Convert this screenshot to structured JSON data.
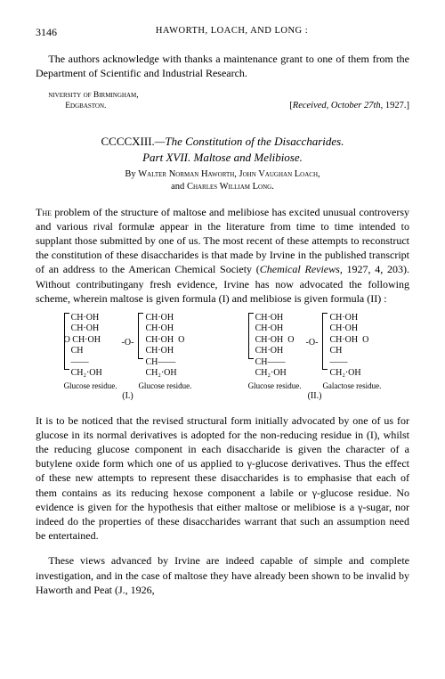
{
  "page_number": "3146",
  "running_head": "HAWORTH, LOACH, AND LONG :",
  "acknowledgement": "The authors acknowledge with thanks a maintenance grant to one of them from the Department of Scientific and Industrial Research.",
  "affiliation": {
    "line1": "niversity of Birmingham,",
    "line2": "Edgbaston.",
    "received": "[Received, October 27th, 1927.]"
  },
  "article": {
    "number": "CCCCXIII.",
    "title_line1": "—The Constitution of the Disaccharides.",
    "title_line2": "Part XVII.  Maltose and Melibiose.",
    "by": "By ",
    "authors": "Walter Norman Haworth, John Vaughan Loach,",
    "authors2": "and Charles William Long."
  },
  "para1": "The problem of the structure of maltose and melibiose has excited unusual controversy and various rival formulæ appear in the literature from time to time intended to supplant those submitted by one of us.  The most recent of these attempts to reconstruct the constitution of these disaccharides is that made by Irvine in the published transcript of an address to the American Chemical Society (Chemical Reviews, 1927, 4, 203).  Without contributingany fresh evidence, Irvine has now advocated the following scheme, wherein maltose is given formula (I) and melibiose is given formula (II) :",
  "para1_first": "The",
  "para1_rest": " problem of the structure of maltose and melibiose has excited unusual controversy and various rival formulæ appear in the literature from time to time intended to supplant those submitted by one of us.  The most recent of these attempts to reconstruct the constitution of these disaccharides is that made by Irvine in the published transcript of an address to the American Chemical Society (",
  "para1_ital": "Chemical Reviews",
  "para1_rest2": ", 1927, 4, 203).  Without contributingany fresh evidence, Irvine has now advocated the following scheme, wherein maltose is given formula (I) and melibiose is given formula (II) :",
  "formulae": {
    "rows": [
      "CH·OH",
      "CH·OH",
      "CH·OH",
      "CH",
      "CH₂·OH"
    ],
    "rows_o": [
      "CH·OH",
      "CH·OH",
      "CH·OH",
      "CH·OH",
      "CH",
      "CH₂·OH"
    ],
    "o": "O",
    "labels": {
      "glucose": "Glucose residue.",
      "galactose": "Galactose residue."
    },
    "num1": "(I.)",
    "num2": "(II.)"
  },
  "para2": "It is to be noticed that the revised structural form initially advocated by one of us for glucose in its normal derivatives is adopted for the non-reducing residue in (I), whilst the reducing glucose component in each disaccharide is given the character of a butylene oxide form which one of us applied to γ-glucose derivatives.  Thus the effect of these new attempts to represent these disaccharides is to emphasise that each of them contains as its reducing hexose component a labile or γ-glucose residue.  No evidence is given for the hypothesis that either maltose or melibiose is a γ-sugar, nor indeed do the properties of these disaccharides warrant that such an assumption need be entertained.",
  "para3": "These views advanced by Irvine are indeed capable of simple and complete investigation, and in the case of maltose they have already been shown to be invalid by Haworth and Peat (J., 1926,"
}
